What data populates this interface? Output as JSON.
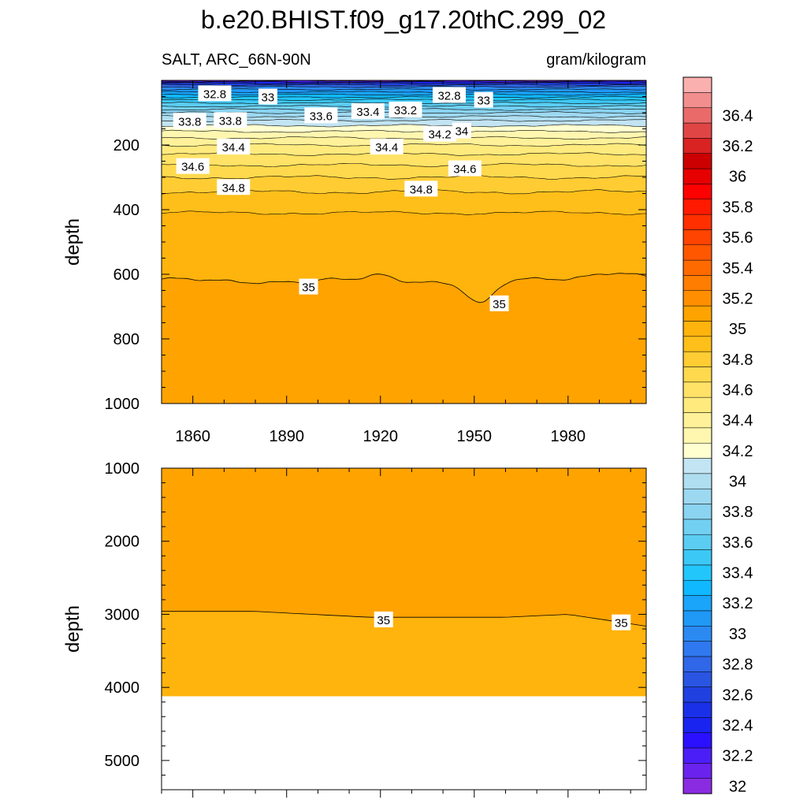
{
  "title": "b.e20.BHIST.f09_g17.20thC.299_02",
  "subtitle_left": "SALT, ARC_66N-90N",
  "subtitle_right": "gram/kilogram",
  "chart_data": [
    {
      "type": "contour",
      "panel": "upper",
      "ylabel": "depth",
      "x_range": [
        1850,
        2005
      ],
      "y_range": [
        1000,
        0
      ],
      "x_ticks": [
        1860,
        1890,
        1920,
        1950,
        1980
      ],
      "x_tick_labels": [
        "1860",
        "1890",
        "1920",
        "1950",
        "1980"
      ],
      "y_ticks": [
        200,
        400,
        600,
        800,
        1000
      ],
      "y_tick_labels": [
        "200",
        "400",
        "600",
        "800",
        "1000"
      ],
      "contour_labels": [
        {
          "text": "32.8",
          "x": 1867,
          "y": 40
        },
        {
          "text": "33",
          "x": 1884,
          "y": 50
        },
        {
          "text": "32.8",
          "x": 1942,
          "y": 45
        },
        {
          "text": "33",
          "x": 1953,
          "y": 60
        },
        {
          "text": "33.8",
          "x": 1859,
          "y": 125
        },
        {
          "text": "33.8",
          "x": 1872,
          "y": 123
        },
        {
          "text": "33.6",
          "x": 1901,
          "y": 108
        },
        {
          "text": "33.4",
          "x": 1916,
          "y": 95
        },
        {
          "text": "33.2",
          "x": 1928,
          "y": 90
        },
        {
          "text": "34.2",
          "x": 1939,
          "y": 165
        },
        {
          "text": "34",
          "x": 1946,
          "y": 155
        },
        {
          "text": "34.4",
          "x": 1873,
          "y": 205
        },
        {
          "text": "34.4",
          "x": 1922,
          "y": 205
        },
        {
          "text": "34.6",
          "x": 1860,
          "y": 265
        },
        {
          "text": "34.6",
          "x": 1947,
          "y": 272
        },
        {
          "text": "34.8",
          "x": 1873,
          "y": 330
        },
        {
          "text": "34.8",
          "x": 1933,
          "y": 335
        },
        {
          "text": "35",
          "x": 1897,
          "y": 638
        },
        {
          "text": "35",
          "x": 1958,
          "y": 690
        }
      ]
    },
    {
      "type": "contour",
      "panel": "lower",
      "ylabel": "depth",
      "x_range": [
        1850,
        2005
      ],
      "y_range": [
        5400,
        1000
      ],
      "x_ticks": [
        1860,
        1890,
        1920,
        1950,
        1980
      ],
      "y_ticks": [
        1000,
        2000,
        3000,
        4000,
        5000
      ],
      "y_tick_labels": [
        "1000",
        "2000",
        "3000",
        "4000",
        "5000"
      ],
      "seafloor_depth": 4120,
      "contour_labels": [
        {
          "text": "35",
          "x": 1921,
          "y": 3070
        },
        {
          "text": "35",
          "x": 1997,
          "y": 3110
        }
      ]
    },
    {
      "type": "colorbar",
      "levels": [
        32,
        32.1,
        32.2,
        32.3,
        32.4,
        32.5,
        32.6,
        32.7,
        32.8,
        32.9,
        33,
        33.1,
        33.2,
        33.3,
        33.4,
        33.5,
        33.6,
        33.7,
        33.8,
        33.9,
        34,
        34.1,
        34.2,
        34.3,
        34.4,
        34.5,
        34.6,
        34.7,
        34.8,
        34.9,
        35,
        35.1,
        35.2,
        35.3,
        35.4,
        35.5,
        35.6,
        35.7,
        35.8,
        35.9,
        36,
        36.1,
        36.2,
        36.3,
        36.4,
        36.5
      ],
      "labels": [
        "32",
        "32.2",
        "32.4",
        "32.6",
        "32.8",
        "33",
        "33.2",
        "33.4",
        "33.6",
        "33.8",
        "34",
        "34.2",
        "34.4",
        "34.6",
        "34.8",
        "35",
        "35.2",
        "35.4",
        "35.6",
        "35.8",
        "36",
        "36.2",
        "36.4"
      ],
      "label_values": [
        32,
        32.2,
        32.4,
        32.6,
        32.8,
        33,
        33.2,
        33.4,
        33.6,
        33.8,
        34,
        34.2,
        34.4,
        34.6,
        34.8,
        35,
        35.2,
        35.4,
        35.6,
        35.8,
        36,
        36.2,
        36.4
      ],
      "colors": [
        "#8a2be2",
        "#6a22ee",
        "#4b1ef8",
        "#2a10ff",
        "#1a24f0",
        "#1a30e8",
        "#2040e0",
        "#2a55e2",
        "#3066e8",
        "#2f78f0",
        "#2a8af2",
        "#1f98f6",
        "#1aa4fa",
        "#10b8ff",
        "#22c6fb",
        "#3cc8f6",
        "#5bcdf3",
        "#72d0f3",
        "#8ad3f1",
        "#9dd8f1",
        "#b0def1",
        "#c2e4f3",
        "#ffffd0",
        "#fff7b0",
        "#fff199",
        "#ffea7e",
        "#ffe266",
        "#ffd94d",
        "#ffcc33",
        "#ffbf1a",
        "#ffb30d",
        "#ffa300",
        "#ff8f00",
        "#ff7d00",
        "#ff6a00",
        "#ff5700",
        "#ff4300",
        "#ff2f00",
        "#ff1a00",
        "#ff0000",
        "#e60000",
        "#cc0000",
        "#d92222",
        "#e04545",
        "#ea6a6a",
        "#f28e8e",
        "#fbb0b0"
      ]
    }
  ]
}
